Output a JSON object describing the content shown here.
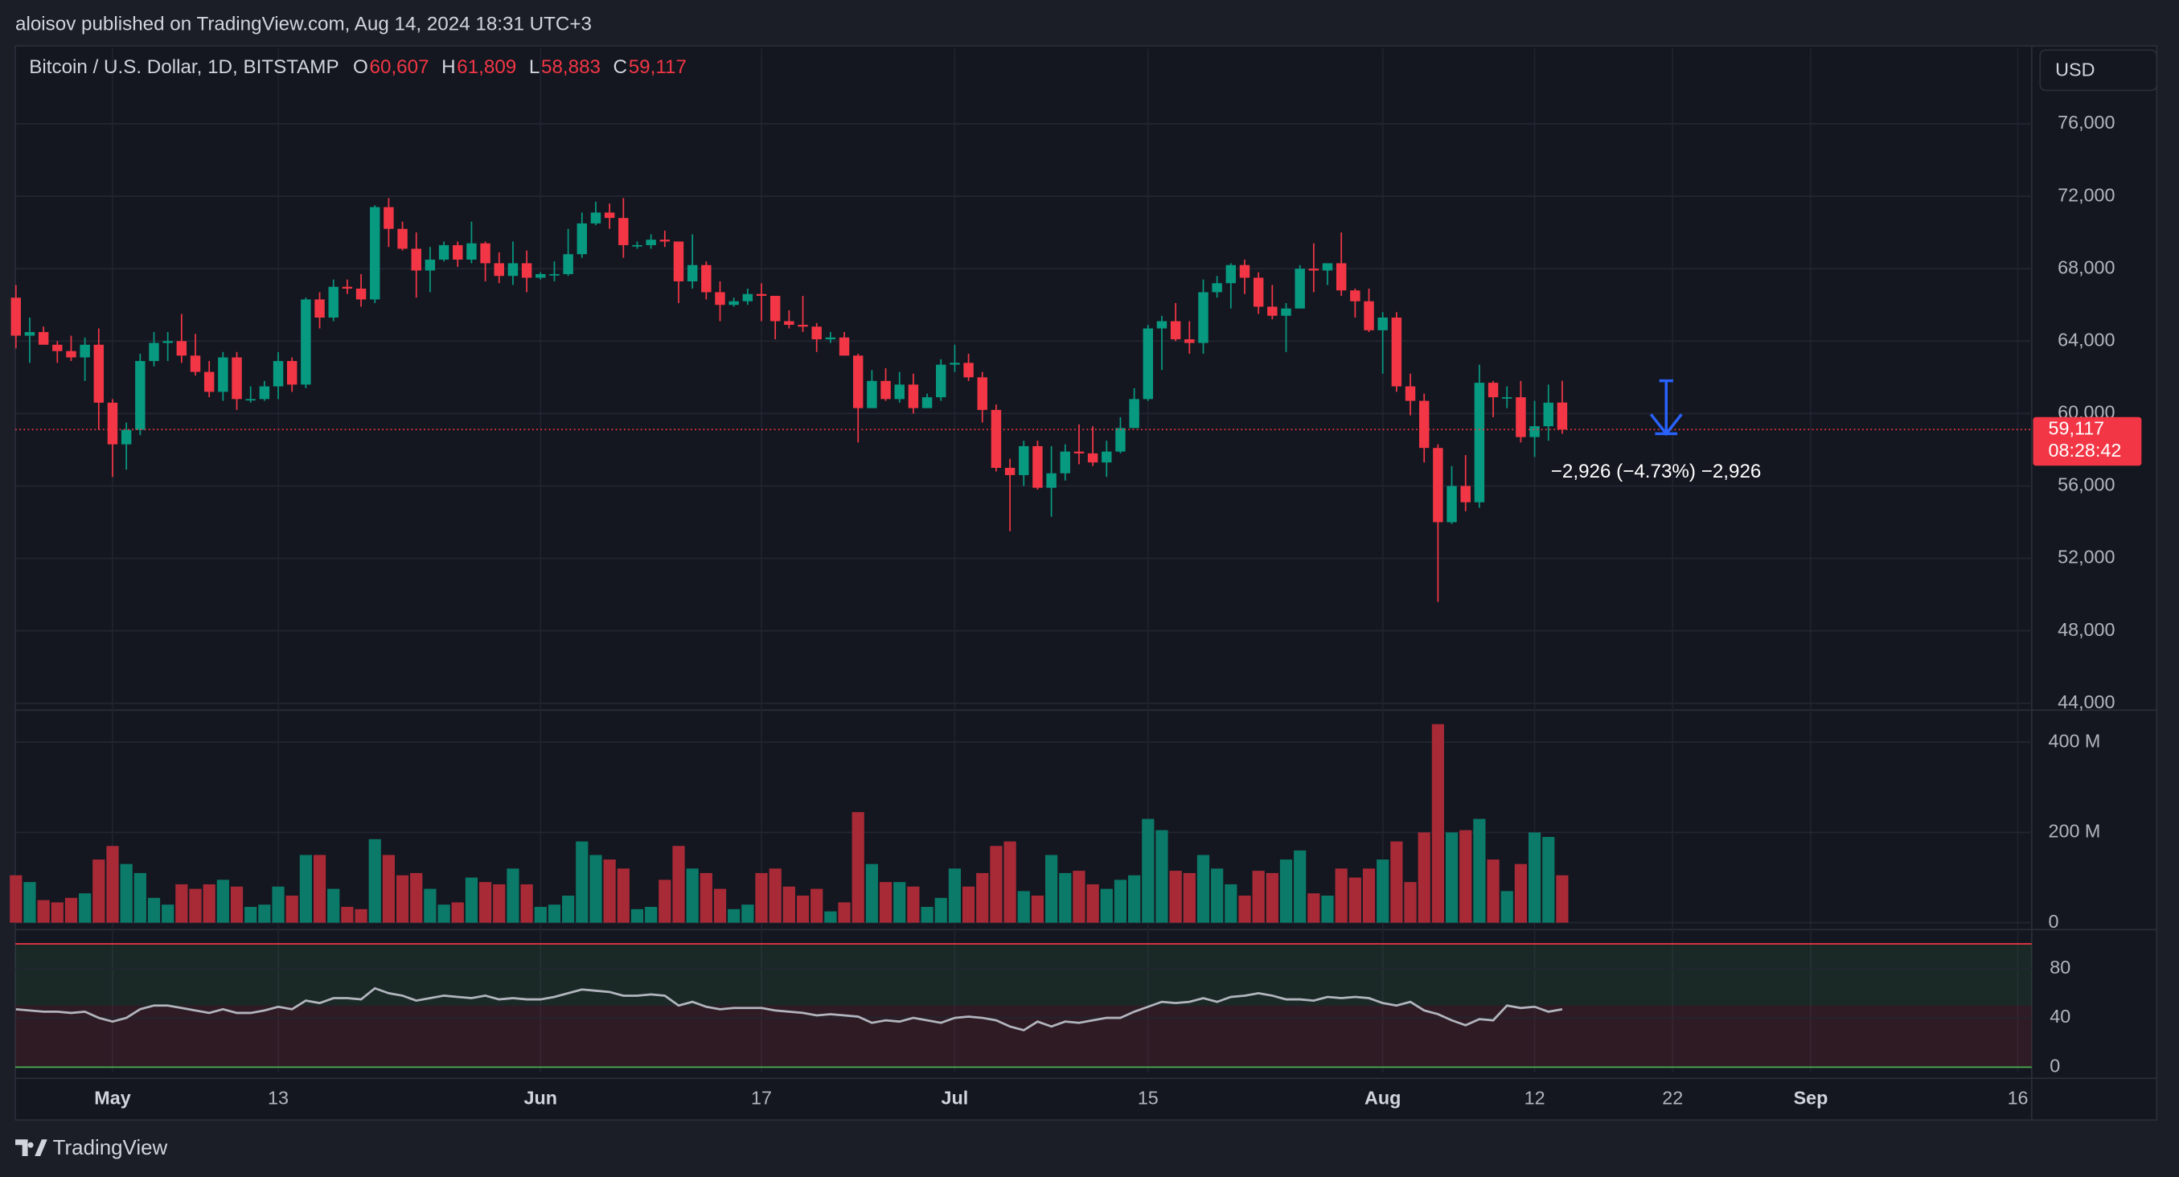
{
  "header": {
    "publisher": "aloisov published on TradingView.com, Aug 14, 2024 18:31 UTC+3"
  },
  "currency": "USD",
  "footer": {
    "brand": "TradingView"
  },
  "chart_data": [
    {
      "type": "candlestick",
      "title": "Bitcoin / U.S. Dollar, 1D, BITSTAMP",
      "ohlc_legend": [
        {
          "name": "O",
          "label": "60,607"
        },
        {
          "name": "H",
          "label": "61,809"
        },
        {
          "name": "L",
          "label": "58,883"
        },
        {
          "name": "C",
          "label": "59,117"
        }
      ],
      "up_color": "#089981",
      "down_color": "#f23645",
      "categories": [
        null,
        null,
        null,
        null,
        null,
        null,
        null,
        "May",
        null,
        null,
        null,
        null,
        null,
        null,
        null,
        null,
        null,
        null,
        null,
        "13",
        null,
        null,
        null,
        null,
        null,
        null,
        null,
        null,
        null,
        null,
        null,
        null,
        null,
        null,
        null,
        null,
        null,
        null,
        "Jun",
        null,
        null,
        null,
        null,
        null,
        null,
        null,
        null,
        null,
        null,
        null,
        null,
        null,
        null,
        null,
        "17",
        null,
        null,
        null,
        null,
        null,
        null,
        null,
        null,
        null,
        null,
        null,
        null,
        null,
        "Jul",
        null,
        null,
        null,
        null,
        null,
        null,
        null,
        null,
        null,
        null,
        null,
        null,
        null,
        "15",
        null,
        null,
        null,
        null,
        null,
        null,
        null,
        null,
        null,
        null,
        null,
        null,
        null,
        null,
        null,
        null,
        "Aug",
        null,
        null,
        null,
        null,
        null,
        null,
        null,
        null,
        null,
        null,
        "12",
        null,
        null,
        null,
        null,
        null,
        null,
        null,
        null,
        null,
        "22",
        null,
        null,
        null,
        null,
        null,
        null,
        null,
        null,
        null,
        "Sep",
        null,
        null,
        null,
        null,
        null,
        null,
        null,
        null,
        null,
        null,
        null,
        null,
        null,
        null,
        "16"
      ],
      "open": [
        66400,
        64300,
        64500,
        63800,
        63450,
        63100,
        63800,
        60600,
        58300,
        59100,
        62900,
        63900,
        64000,
        63200,
        62300,
        61200,
        63100,
        60800,
        60800,
        61500,
        62900,
        61600,
        66300,
        65300,
        67000,
        66900,
        66300,
        71400,
        70200,
        69100,
        67900,
        68500,
        69300,
        68500,
        69400,
        68300,
        67600,
        68300,
        67500,
        67700,
        67700,
        68800,
        70500,
        71100,
        70800,
        69300,
        69300,
        69600,
        69500,
        67300,
        68200,
        66700,
        66000,
        66200,
        66600,
        66500,
        65100,
        64900,
        64800,
        64100,
        64200,
        63200,
        60300,
        61800,
        60800,
        61600,
        60300,
        60900,
        62700,
        62800,
        62000,
        60200,
        57000,
        56600,
        58200,
        55900,
        56700,
        57900,
        57800,
        57300,
        57900,
        59200,
        60800,
        64700,
        65100,
        64100,
        63900,
        66700,
        67200,
        68200,
        67500,
        65900,
        65400,
        65800,
        68000,
        67900,
        68300,
        66800,
        66200,
        64600,
        65300,
        61500,
        60700,
        58100,
        54000,
        56000,
        55100,
        61700,
        60900,
        60900,
        58700,
        59300,
        60607,
        null,
        null,
        null,
        null,
        null,
        null,
        null,
        null,
        null,
        null,
        null,
        null,
        null,
        null,
        null,
        null,
        null,
        null,
        null,
        null,
        null,
        null,
        null,
        null,
        null,
        null,
        null,
        null,
        null,
        null,
        null,
        null,
        null
      ],
      "high": [
        67100,
        65300,
        64800,
        64000,
        64300,
        64200,
        64700,
        60800,
        59500,
        63300,
        64500,
        64500,
        65500,
        64400,
        62900,
        63400,
        63400,
        61500,
        61800,
        63400,
        63100,
        66400,
        66700,
        67400,
        67400,
        67700,
        71500,
        71900,
        70600,
        70000,
        69200,
        69500,
        69500,
        70600,
        69500,
        68900,
        69500,
        69000,
        67800,
        68400,
        70200,
        71100,
        71700,
        71600,
        71900,
        69500,
        69900,
        70100,
        69500,
        69900,
        68400,
        67300,
        66400,
        66900,
        67200,
        66500,
        65700,
        66500,
        65000,
        64500,
        64500,
        63300,
        62400,
        62500,
        62300,
        62200,
        61100,
        63000,
        63800,
        63300,
        62300,
        60500,
        57500,
        58500,
        58500,
        58200,
        58300,
        59400,
        59300,
        58500,
        59800,
        61400,
        64900,
        65400,
        66100,
        65100,
        67400,
        67600,
        68300,
        68500,
        67800,
        67100,
        66100,
        68200,
        69400,
        68300,
        70000,
        66900,
        66900,
        65600,
        65600,
        62200,
        61100,
        58300,
        57100,
        57700,
        62700,
        61800,
        61500,
        61800,
        60700,
        61600,
        61809,
        null,
        null,
        null,
        null,
        null,
        null,
        null,
        null,
        null,
        null,
        null,
        null,
        null,
        null,
        null,
        null,
        null,
        null,
        null,
        null,
        null,
        null,
        null,
        null,
        null,
        null,
        null,
        null,
        null,
        null,
        null,
        null,
        null
      ],
      "low": [
        63600,
        62800,
        63800,
        62800,
        62900,
        61800,
        59100,
        56500,
        56900,
        58800,
        62600,
        62900,
        62800,
        62100,
        60900,
        60700,
        60200,
        60600,
        60700,
        60800,
        61200,
        61400,
        64700,
        65100,
        66600,
        65900,
        66100,
        69200,
        69000,
        66400,
        66700,
        68400,
        68100,
        68300,
        67300,
        67200,
        67100,
        66700,
        67400,
        67300,
        67600,
        68600,
        70400,
        70200,
        68600,
        69100,
        69100,
        69200,
        66100,
        66900,
        66300,
        65100,
        65900,
        66000,
        65100,
        64100,
        64700,
        64500,
        63400,
        63900,
        63200,
        58400,
        60300,
        60700,
        60600,
        60000,
        60300,
        60700,
        62300,
        61800,
        59500,
        56800,
        53500,
        56000,
        55800,
        54300,
        56300,
        57200,
        57100,
        56500,
        57800,
        59200,
        60700,
        62400,
        64000,
        63300,
        63300,
        66400,
        65800,
        66600,
        65500,
        65200,
        63400,
        65800,
        66700,
        67100,
        66500,
        65300,
        64500,
        62200,
        61200,
        59900,
        57300,
        49600,
        53900,
        54600,
        54800,
        59800,
        60300,
        58400,
        57600,
        58500,
        58883,
        null,
        null,
        null,
        null,
        null,
        null,
        null,
        null,
        null,
        null,
        null,
        null,
        null,
        null,
        null,
        null,
        null,
        null,
        null,
        null,
        null,
        null,
        null,
        null,
        null,
        null,
        null,
        null,
        null,
        null,
        null,
        null,
        null
      ],
      "close": [
        64300,
        64500,
        63800,
        63450,
        63100,
        63800,
        60600,
        58300,
        59100,
        62900,
        63900,
        64000,
        63200,
        62300,
        61200,
        63100,
        60800,
        60800,
        61500,
        62900,
        61600,
        66300,
        65300,
        67000,
        66900,
        66300,
        71400,
        70200,
        69100,
        67900,
        68500,
        69300,
        68500,
        69400,
        68300,
        67600,
        68300,
        67500,
        67700,
        67700,
        68800,
        70500,
        71100,
        70800,
        69300,
        69300,
        69600,
        69500,
        67300,
        68200,
        66700,
        66000,
        66200,
        66600,
        66500,
        65100,
        64900,
        64800,
        64100,
        64200,
        63200,
        60300,
        61800,
        60800,
        61600,
        60300,
        60900,
        62700,
        62800,
        62000,
        60200,
        57000,
        56600,
        58200,
        55900,
        56700,
        57900,
        57800,
        57300,
        57900,
        59200,
        60800,
        64700,
        65100,
        64100,
        63900,
        66700,
        67200,
        68200,
        67500,
        65900,
        65400,
        65800,
        68000,
        67900,
        68300,
        66800,
        66200,
        64600,
        65300,
        61500,
        60700,
        58100,
        54000,
        56000,
        55100,
        61700,
        60900,
        60900,
        58700,
        59300,
        60600,
        59117,
        null,
        null,
        null,
        null,
        null,
        null,
        null,
        null,
        null,
        null,
        null,
        null,
        null,
        null,
        null,
        null,
        null,
        null,
        null,
        null,
        null,
        null,
        null,
        null,
        null,
        null,
        null,
        null,
        null,
        null,
        null,
        null,
        null
      ],
      "ylim": [
        43700,
        80150
      ],
      "yticks": [
        {
          "value": 44000,
          "label": "44,000"
        },
        {
          "value": 48000,
          "label": "48,000"
        },
        {
          "value": 52000,
          "label": "52,000"
        },
        {
          "value": 56000,
          "label": "56,000"
        },
        {
          "value": 60000,
          "label": "60,000"
        },
        {
          "value": 64000,
          "label": "64,000"
        },
        {
          "value": 68000,
          "label": "68,000"
        },
        {
          "value": 72000,
          "label": "72,000"
        },
        {
          "value": 76000,
          "label": "76,000"
        }
      ],
      "grid": true,
      "last_price": {
        "value": 59117,
        "label": "59,117"
      },
      "countdown": "08:28:42",
      "measure": {
        "label": "−2,926 (−4.73%) −2,926",
        "from": 61809,
        "to": 58883,
        "color": "#2962ff"
      }
    },
    {
      "type": "volume",
      "up_color": "#0b7a68",
      "down_color": "#a82a37",
      "values": [
        105,
        90,
        50,
        45,
        55,
        65,
        140,
        170,
        130,
        110,
        55,
        40,
        85,
        75,
        85,
        95,
        80,
        35,
        40,
        80,
        60,
        150,
        150,
        75,
        35,
        30,
        185,
        150,
        105,
        110,
        75,
        40,
        45,
        100,
        90,
        85,
        120,
        85,
        35,
        40,
        60,
        180,
        150,
        140,
        120,
        30,
        35,
        95,
        170,
        120,
        110,
        75,
        30,
        40,
        110,
        120,
        80,
        60,
        75,
        25,
        45,
        245,
        130,
        90,
        90,
        80,
        35,
        55,
        120,
        80,
        110,
        170,
        180,
        70,
        60,
        150,
        110,
        115,
        85,
        75,
        95,
        105,
        230,
        205,
        115,
        110,
        150,
        120,
        85,
        60,
        115,
        110,
        140,
        160,
        65,
        60,
        120,
        100,
        120,
        140,
        180,
        90,
        200,
        440,
        200,
        205,
        230,
        140,
        70,
        130,
        200,
        190,
        105,
        null,
        null,
        null,
        null,
        null,
        null,
        null,
        null,
        null,
        null,
        null,
        null,
        null,
        null,
        null,
        null,
        null,
        null,
        null,
        null,
        null,
        null,
        null,
        null,
        null,
        null,
        null,
        null,
        null,
        null,
        null,
        null,
        null
      ],
      "ylim": [
        0,
        468
      ],
      "yticks": [
        0,
        {
          "value": 200,
          "label": "200 M"
        },
        {
          "value": 400,
          "label": "400 M"
        }
      ]
    },
    {
      "type": "line",
      "color": "#b2b5be",
      "values": [
        47,
        46,
        45,
        45,
        44,
        45,
        40,
        37,
        40,
        47,
        50,
        50,
        48,
        46,
        44,
        47,
        44,
        44,
        46,
        49,
        47,
        54,
        52,
        56,
        56,
        55,
        64,
        60,
        58,
        54,
        56,
        58,
        57,
        56,
        58,
        55,
        56,
        55,
        55,
        57,
        60,
        63,
        62,
        61,
        58,
        58,
        59,
        58,
        50,
        53,
        49,
        47,
        48,
        48,
        48,
        46,
        45,
        44,
        42,
        43,
        42,
        41,
        36,
        38,
        37,
        40,
        38,
        36,
        40,
        41,
        40,
        38,
        33,
        30,
        37,
        33,
        37,
        36,
        38,
        40,
        40,
        45,
        49,
        53,
        52,
        53,
        56,
        53,
        57,
        58,
        60,
        58,
        55,
        55,
        54,
        57,
        56,
        57,
        56,
        52,
        50,
        53,
        46,
        43,
        38,
        34,
        39,
        38,
        50,
        48,
        49,
        45,
        47,
        null,
        null,
        null,
        null,
        null,
        null,
        null,
        null,
        null,
        null,
        null,
        null,
        null,
        null,
        null,
        null,
        null,
        null,
        null,
        null,
        null,
        null,
        null,
        null,
        null,
        null,
        null,
        null,
        null,
        null,
        null,
        null,
        null
      ],
      "ylim": [
        -4.5,
        104.8
      ],
      "yticks": [
        0,
        40,
        80
      ],
      "levels": [
        {
          "value": 100,
          "color": "#f23645"
        },
        {
          "value": 0,
          "color": "#4caf50"
        }
      ]
    }
  ]
}
